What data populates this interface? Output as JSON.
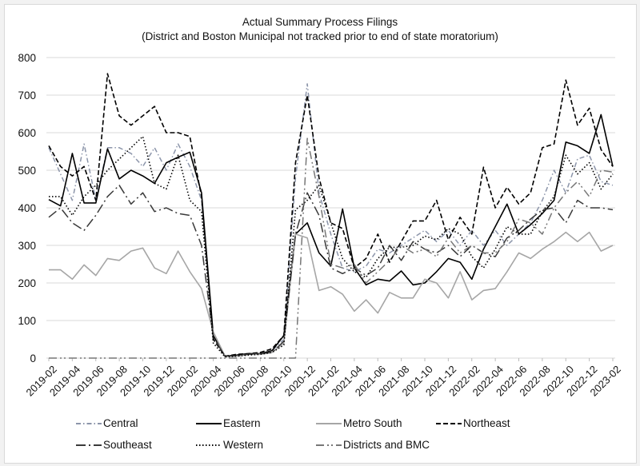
{
  "chart_data": {
    "type": "line",
    "title": "Actual Summary Process Filings",
    "subtitle": "(District and Boston Municipal not tracked prior to end of state moratorium)",
    "xlabel": "",
    "ylabel": "",
    "ylim": [
      0,
      800
    ],
    "yticks": [
      "0",
      "100",
      "200",
      "300",
      "400",
      "500",
      "600",
      "700",
      "800"
    ],
    "grid": true,
    "legend": "bottom",
    "x": [
      "2019-02",
      "2019-03",
      "2019-04",
      "2019-05",
      "2019-06",
      "2019-07",
      "2019-08",
      "2019-09",
      "2019-10",
      "2019-11",
      "2019-12",
      "2020-01",
      "2020-02",
      "2020-03",
      "2020-04",
      "2020-05",
      "2020-06",
      "2020-07",
      "2020-08",
      "2020-09",
      "2020-10",
      "2020-11",
      "2020-12",
      "2021-01",
      "2021-02",
      "2021-03",
      "2021-04",
      "2021-05",
      "2021-06",
      "2021-07",
      "2021-08",
      "2021-09",
      "2021-10",
      "2021-11",
      "2021-12",
      "2022-01",
      "2022-02",
      "2022-03",
      "2022-04",
      "2022-05",
      "2022-06",
      "2022-07",
      "2022-08",
      "2022-09",
      "2022-10",
      "2022-11",
      "2022-12",
      "2023-01",
      "2023-02"
    ],
    "series": [
      {
        "name": "Central",
        "color": "#8c95aa",
        "dash": "6 3 1.5 3",
        "width": 1.5,
        "values": [
          560,
          490,
          420,
          570,
          420,
          560,
          560,
          545,
          510,
          560,
          500,
          570,
          510,
          420,
          55,
          5,
          8,
          12,
          12,
          20,
          50,
          480,
          730,
          440,
          330,
          240,
          230,
          245,
          290,
          280,
          300,
          320,
          340,
          310,
          340,
          300,
          340,
          300,
          340,
          300,
          330,
          360,
          420,
          500,
          440,
          530,
          540,
          470,
          460
        ]
      },
      {
        "name": "Eastern",
        "color": "#000000",
        "dash": "",
        "width": 1.6,
        "values": [
          422,
          405,
          545,
          413,
          413,
          557,
          477,
          500,
          485,
          465,
          520,
          535,
          548,
          440,
          60,
          5,
          8,
          12,
          12,
          20,
          60,
          330,
          360,
          280,
          245,
          397,
          240,
          195,
          210,
          205,
          232,
          195,
          200,
          230,
          265,
          255,
          210,
          290,
          350,
          410,
          330,
          355,
          385,
          420,
          575,
          565,
          545,
          648,
          510
        ]
      },
      {
        "name": "Metro South",
        "color": "#a6a6a6",
        "dash": "",
        "width": 1.6,
        "values": [
          235,
          235,
          210,
          248,
          220,
          265,
          260,
          285,
          293,
          240,
          225,
          285,
          230,
          185,
          70,
          5,
          5,
          10,
          10,
          15,
          40,
          330,
          320,
          180,
          190,
          170,
          125,
          155,
          120,
          175,
          160,
          160,
          210,
          200,
          160,
          230,
          155,
          180,
          185,
          230,
          280,
          265,
          290,
          310,
          335,
          310,
          335,
          285,
          300
        ]
      },
      {
        "name": "Northeast",
        "color": "#000000",
        "dash": "6 3",
        "width": 1.6,
        "values": [
          565,
          510,
          485,
          510,
          420,
          757,
          645,
          620,
          645,
          670,
          600,
          600,
          590,
          430,
          50,
          5,
          10,
          12,
          15,
          25,
          60,
          520,
          700,
          480,
          360,
          345,
          240,
          265,
          330,
          255,
          310,
          365,
          365,
          420,
          315,
          375,
          330,
          508,
          400,
          455,
          410,
          440,
          560,
          570,
          740,
          620,
          665,
          555,
          510
        ]
      },
      {
        "name": "Southeast",
        "color": "#3a3a3a",
        "dash": "12 4 2 4",
        "width": 1.5,
        "values": [
          375,
          400,
          360,
          340,
          380,
          430,
          460,
          410,
          440,
          390,
          400,
          385,
          380,
          300,
          55,
          5,
          6,
          10,
          12,
          15,
          45,
          330,
          440,
          380,
          240,
          225,
          240,
          220,
          240,
          300,
          260,
          310,
          290,
          280,
          300,
          270,
          300,
          280,
          270,
          320,
          340,
          370,
          395,
          400,
          360,
          420,
          400,
          400,
          395
        ]
      },
      {
        "name": "Western",
        "color": "#000000",
        "dash": "1.5 2.5",
        "width": 1.6,
        "values": [
          430,
          430,
          380,
          430,
          460,
          500,
          530,
          560,
          590,
          465,
          450,
          540,
          420,
          390,
          40,
          3,
          5,
          8,
          10,
          15,
          35,
          395,
          420,
          460,
          360,
          265,
          230,
          215,
          265,
          295,
          295,
          300,
          325,
          315,
          345,
          330,
          270,
          240,
          290,
          350,
          330,
          330,
          390,
          430,
          540,
          490,
          520,
          450,
          490
        ]
      },
      {
        "name": "Districts and BMC",
        "color": "#777777",
        "dash": "10 4 2 3 2 4",
        "width": 1.5,
        "values": [
          0,
          0,
          0,
          0,
          0,
          0,
          0,
          0,
          0,
          0,
          0,
          0,
          0,
          0,
          0,
          0,
          0,
          0,
          0,
          0,
          0,
          0,
          585,
          430,
          250,
          240,
          250,
          200,
          230,
          260,
          300,
          280,
          290,
          270,
          320,
          280,
          300,
          280,
          280,
          310,
          370,
          360,
          330,
          400,
          440,
          470,
          430,
          500,
          495
        ]
      }
    ]
  }
}
